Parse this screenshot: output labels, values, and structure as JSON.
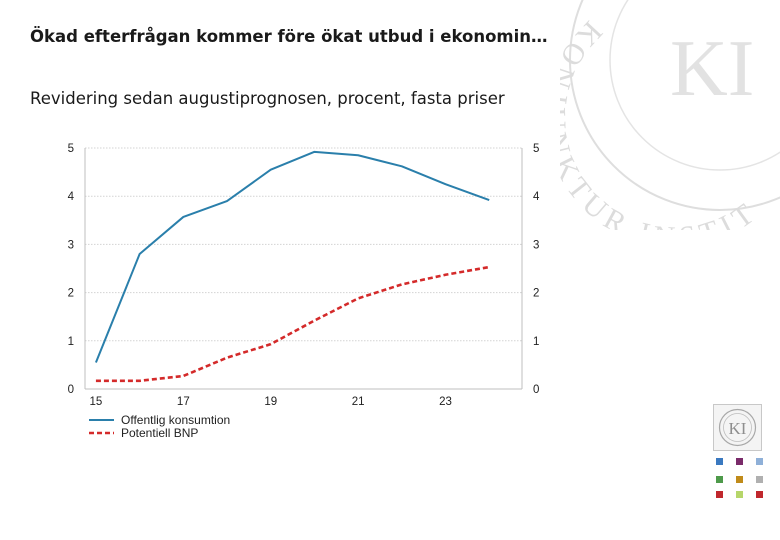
{
  "header": {
    "title": "Ökad efterfrågan kommer före ökat utbud i ekonomin…",
    "subtitle": "Revidering sedan augustiprognosen, procent, fasta priser"
  },
  "watermark": {
    "text": "KONJUNKTUR INSTITUTET",
    "monogram": "KI",
    "color": "#d9d9d9"
  },
  "logo": {
    "monogram": "KI",
    "color": "#9a9a9a"
  },
  "swatch_colors": [
    "#3a79c0",
    "#7a2b6a",
    "#8fb0d8",
    "#4e9a4a",
    "#c08b1a",
    "#b0b0b0",
    "#c0282d",
    "#b6d66a",
    "#c0282d"
  ],
  "chart_data": {
    "type": "line",
    "title": "Ökad efterfrågan kommer före ökat utbud i ekonomin…",
    "subtitle": "Revidering sedan augustiprognosen, procent, fasta priser",
    "x": [
      2015,
      2016,
      2017,
      2018,
      2019,
      2020,
      2021,
      2022,
      2023,
      2024
    ],
    "x_tick_labels": [
      "15",
      "17",
      "19",
      "21",
      "23"
    ],
    "x_tick_values": [
      2015,
      2017,
      2019,
      2021,
      2023
    ],
    "xlim": [
      2014.75,
      2024.75
    ],
    "ylim": [
      0,
      5
    ],
    "y_ticks": [
      "0",
      "1",
      "2",
      "3",
      "4",
      "5"
    ],
    "grid": true,
    "legend_position": "bottom-left",
    "series": [
      {
        "name": "Offentlig konsumtion",
        "color": "#2a7fab",
        "style": "solid",
        "values": [
          0.55,
          2.8,
          3.57,
          3.9,
          4.55,
          4.92,
          4.85,
          4.62,
          4.25,
          3.92
        ]
      },
      {
        "name": "Potentiell BNP",
        "color": "#d42a2a",
        "style": "dashed",
        "values": [
          0.17,
          0.17,
          0.27,
          0.65,
          0.93,
          1.42,
          1.88,
          2.17,
          2.37,
          2.53
        ]
      }
    ]
  }
}
